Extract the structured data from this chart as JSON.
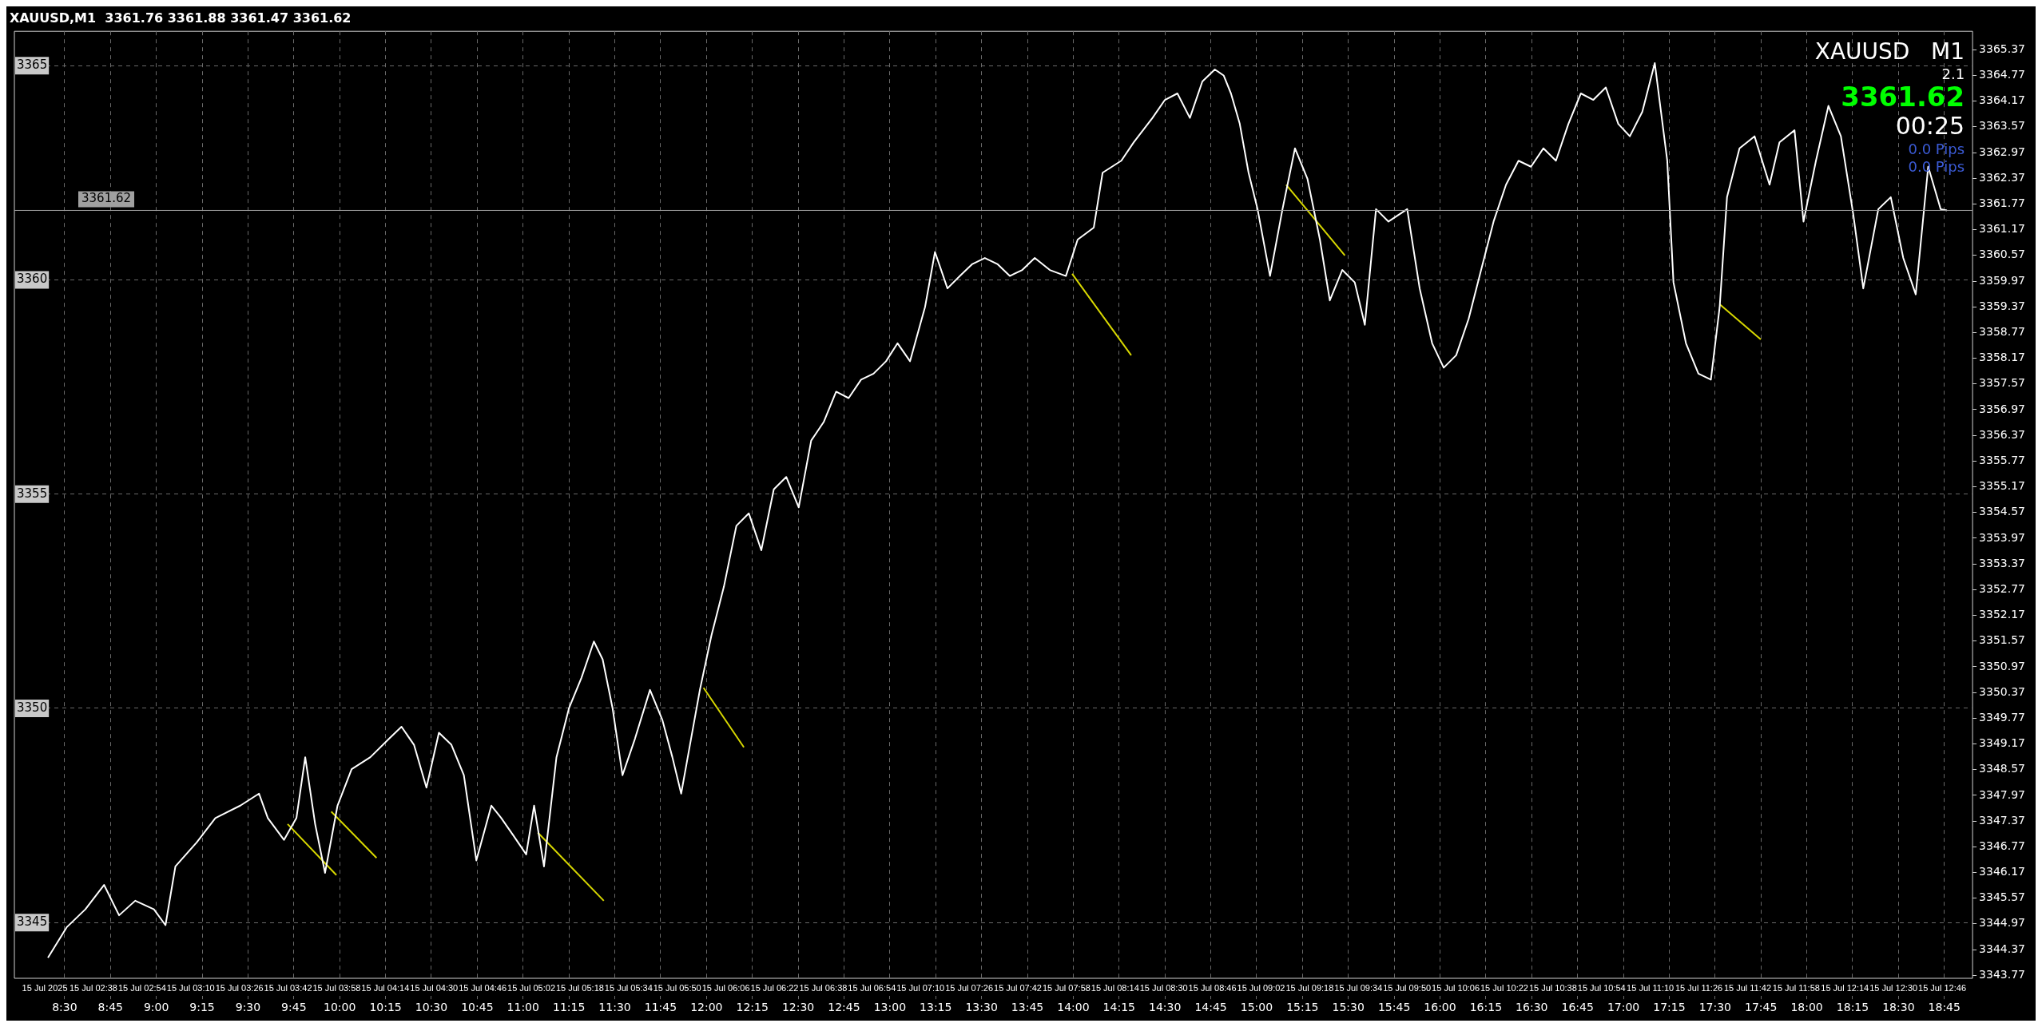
{
  "chart_data": {
    "type": "line",
    "title": "XAUUSD,M1  3361.76 3361.88 3361.47 3361.62",
    "annotations": [
      "XAUUSD   M1",
      "2.1",
      "3361.62",
      "00:25",
      "0.0 Pips",
      "0.0 Pips"
    ],
    "marker": "none",
    "legend": false,
    "grid": true,
    "xlim": [
      8.226,
      18.904
    ],
    "xticks": [
      {
        "value": 8.5,
        "label": "8:30"
      },
      {
        "value": 8.75,
        "label": "8:45"
      },
      {
        "value": 9,
        "label": "9:00"
      },
      {
        "value": 9.25,
        "label": "9:15"
      },
      {
        "value": 9.5,
        "label": "9:30"
      },
      {
        "value": 9.75,
        "label": "9:45"
      },
      {
        "value": 10,
        "label": "10:00"
      },
      {
        "value": 10.25,
        "label": "10:15"
      },
      {
        "value": 10.5,
        "label": "10:30"
      },
      {
        "value": 10.75,
        "label": "10:45"
      },
      {
        "value": 11,
        "label": "11:00"
      },
      {
        "value": 11.25,
        "label": "11:15"
      },
      {
        "value": 11.5,
        "label": "11:30"
      },
      {
        "value": 11.75,
        "label": "11:45"
      },
      {
        "value": 12,
        "label": "12:00"
      },
      {
        "value": 12.25,
        "label": "12:15"
      },
      {
        "value": 12.5,
        "label": "12:30"
      },
      {
        "value": 12.75,
        "label": "12:45"
      },
      {
        "value": 13,
        "label": "13:00"
      },
      {
        "value": 13.25,
        "label": "13:15"
      },
      {
        "value": 13.5,
        "label": "13:30"
      },
      {
        "value": 13.75,
        "label": "13:45"
      },
      {
        "value": 14,
        "label": "14:00"
      },
      {
        "value": 14.25,
        "label": "14:15"
      },
      {
        "value": 14.5,
        "label": "14:30"
      },
      {
        "value": 14.75,
        "label": "14:45"
      },
      {
        "value": 15,
        "label": "15:00"
      },
      {
        "value": 15.25,
        "label": "15:15"
      },
      {
        "value": 15.5,
        "label": "15:30"
      },
      {
        "value": 15.75,
        "label": "15:45"
      },
      {
        "value": 16,
        "label": "16:00"
      },
      {
        "value": 16.25,
        "label": "16:15"
      },
      {
        "value": 16.5,
        "label": "16:30"
      },
      {
        "value": 16.75,
        "label": "16:45"
      },
      {
        "value": 17,
        "label": "17:00"
      },
      {
        "value": 17.25,
        "label": "17:15"
      },
      {
        "value": 17.5,
        "label": "17:30"
      },
      {
        "value": 17.75,
        "label": "17:45"
      },
      {
        "value": 18,
        "label": "18:00"
      },
      {
        "value": 18.25,
        "label": "18:15"
      },
      {
        "value": 18.5,
        "label": "18:30"
      },
      {
        "value": 18.75,
        "label": "18:45"
      }
    ],
    "x2lim": [
      "2025-07-15T02:12",
      "2025-07-15T12:56"
    ],
    "x2ticks": [
      {
        "value": "2025-07-15T02:22",
        "label": "15 Jul 2025"
      },
      {
        "value": "2025-07-15T02:38",
        "label": "15 Jul 02:38"
      },
      {
        "value": "2025-07-15T02:54",
        "label": "15 Jul 02:54"
      },
      {
        "value": "2025-07-15T03:10",
        "label": "15 Jul 03:10"
      },
      {
        "value": "2025-07-15T03:26",
        "label": "15 Jul 03:26"
      },
      {
        "value": "2025-07-15T03:42",
        "label": "15 Jul 03:42"
      },
      {
        "value": "2025-07-15T03:58",
        "label": "15 Jul 03:58"
      },
      {
        "value": "2025-07-15T04:14",
        "label": "15 Jul 04:14"
      },
      {
        "value": "2025-07-15T04:30",
        "label": "15 Jul 04:30"
      },
      {
        "value": "2025-07-15T04:46",
        "label": "15 Jul 04:46"
      },
      {
        "value": "2025-07-15T05:02",
        "label": "15 Jul 05:02"
      },
      {
        "value": "2025-07-15T05:18",
        "label": "15 Jul 05:18"
      },
      {
        "value": "2025-07-15T05:34",
        "label": "15 Jul 05:34"
      },
      {
        "value": "2025-07-15T05:50",
        "label": "15 Jul 05:50"
      },
      {
        "value": "2025-07-15T06:06",
        "label": "15 Jul 06:06"
      },
      {
        "value": "2025-07-15T06:22",
        "label": "15 Jul 06:22"
      },
      {
        "value": "2025-07-15T06:38",
        "label": "15 Jul 06:38"
      },
      {
        "value": "2025-07-15T06:54",
        "label": "15 Jul 06:54"
      },
      {
        "value": "2025-07-15T07:10",
        "label": "15 Jul 07:10"
      },
      {
        "value": "2025-07-15T07:26",
        "label": "15 Jul 07:26"
      },
      {
        "value": "2025-07-15T07:42",
        "label": "15 Jul 07:42"
      },
      {
        "value": "2025-07-15T07:58",
        "label": "15 Jul 07:58"
      },
      {
        "value": "2025-07-15T08:14",
        "label": "15 Jul 08:14"
      },
      {
        "value": "2025-07-15T08:30",
        "label": "15 Jul 08:30"
      },
      {
        "value": "2025-07-15T08:46",
        "label": "15 Jul 08:46"
      },
      {
        "value": "2025-07-15T09:02",
        "label": "15 Jul 09:02"
      },
      {
        "value": "2025-07-15T09:18",
        "label": "15 Jul 09:18"
      },
      {
        "value": "2025-07-15T09:34",
        "label": "15 Jul 09:34"
      },
      {
        "value": "2025-07-15T09:50",
        "label": "15 Jul 09:50"
      },
      {
        "value": "2025-07-15T10:06",
        "label": "15 Jul 10:06"
      },
      {
        "value": "2025-07-15T10:22",
        "label": "15 Jul 10:22"
      },
      {
        "value": "2025-07-15T10:38",
        "label": "15 Jul 10:38"
      },
      {
        "value": "2025-07-15T10:54",
        "label": "15 Jul 10:54"
      },
      {
        "value": "2025-07-15T11:10",
        "label": "15 Jul 11:10"
      },
      {
        "value": "2025-07-15T11:26",
        "label": "15 Jul 11:26"
      },
      {
        "value": "2025-07-15T11:42",
        "label": "15 Jul 11:42"
      },
      {
        "value": "2025-07-15T11:58",
        "label": "15 Jul 11:58"
      },
      {
        "value": "2025-07-15T12:14",
        "label": "15 Jul 12:14"
      },
      {
        "value": "2025-07-15T12:30",
        "label": "15 Jul 12:30"
      },
      {
        "value": "2025-07-15T12:46",
        "label": "15 Jul 12:46"
      }
    ],
    "ylim": [
      3343.7,
      3365.8
    ],
    "yticks": [
      3345,
      3350,
      3355,
      3360,
      3365
    ],
    "y2lim": [
      3343.7,
      3365.8
    ],
    "y2ticks": [
      3343.77,
      3344.37,
      3344.97,
      3345.57,
      3346.17,
      3346.77,
      3347.37,
      3347.97,
      3348.57,
      3349.17,
      3349.77,
      3350.37,
      3350.97,
      3351.57,
      3352.17,
      3352.77,
      3353.37,
      3353.97,
      3354.57,
      3355.17,
      3355.77,
      3356.37,
      3356.97,
      3357.57,
      3358.17,
      3358.77,
      3359.37,
      3359.97,
      3360.57,
      3361.17,
      3361.77,
      3362.37,
      3362.97,
      3363.57,
      3364.17,
      3364.77,
      3365.37
    ],
    "ref_lines": [
      {
        "axis": "y",
        "value": 3361.62,
        "label": "3361.62",
        "color": "#a0a0a0"
      }
    ],
    "series": [
      {
        "color": "#ffffff",
        "x": [
          8.409,
          8.511,
          8.613,
          8.715,
          8.797,
          8.885,
          8.987,
          9.05,
          9.104,
          9.22,
          9.322,
          9.458,
          9.56,
          9.608,
          9.696,
          9.764,
          9.812,
          9.866,
          9.92,
          9.988,
          10.065,
          10.167,
          10.269,
          10.337,
          10.405,
          10.473,
          10.541,
          10.609,
          10.677,
          10.745,
          10.827,
          10.881,
          10.949,
          11.017,
          11.06,
          11.114,
          11.182,
          11.25,
          11.318,
          11.386,
          11.434,
          11.488,
          11.542,
          11.61,
          11.692,
          11.76,
          11.814,
          11.862,
          11.91,
          11.964,
          12.027,
          12.095,
          12.163,
          12.231,
          12.299,
          12.367,
          12.435,
          12.503,
          12.571,
          12.639,
          12.707,
          12.775,
          12.843,
          12.911,
          12.979,
          13.042,
          13.11,
          13.192,
          13.246,
          13.314,
          13.382,
          13.45,
          13.518,
          13.586,
          13.654,
          13.722,
          13.79,
          13.872,
          13.96,
          14.024,
          14.112,
          14.16,
          14.262,
          14.33,
          14.432,
          14.5,
          14.568,
          14.636,
          14.704,
          14.772,
          14.82,
          14.86,
          14.908,
          14.956,
          15.005,
          15.073,
          15.141,
          15.209,
          15.277,
          15.345,
          15.399,
          15.467,
          15.535,
          15.59,
          15.651,
          15.719,
          15.821,
          15.889,
          15.957,
          16.02,
          16.088,
          16.156,
          16.224,
          16.292,
          16.36,
          16.428,
          16.496,
          16.564,
          16.632,
          16.7,
          16.768,
          16.836,
          16.904,
          16.972,
          17.035,
          17.103,
          17.171,
          17.205,
          17.239,
          17.273,
          17.341,
          17.409,
          17.477,
          17.525,
          17.565,
          17.633,
          17.715,
          17.797,
          17.851,
          17.933,
          17.982,
          18.05,
          18.118,
          18.186,
          18.254,
          18.308,
          18.39,
          18.458,
          18.526,
          18.594,
          18.662,
          18.73,
          18.764
        ],
        "values": [
          3344.18,
          3344.89,
          3345.31,
          3345.88,
          3345.17,
          3345.51,
          3345.31,
          3344.94,
          3346.31,
          3346.87,
          3347.44,
          3347.73,
          3348.01,
          3347.44,
          3346.93,
          3347.44,
          3348.86,
          3347.3,
          3346.16,
          3347.73,
          3348.58,
          3348.86,
          3349.29,
          3349.57,
          3349.15,
          3348.15,
          3349.43,
          3349.15,
          3348.44,
          3346.45,
          3347.73,
          3347.44,
          3347.02,
          3346.59,
          3347.73,
          3346.31,
          3348.86,
          3350.0,
          3350.71,
          3351.56,
          3351.14,
          3350.0,
          3348.44,
          3349.29,
          3350.43,
          3349.72,
          3348.86,
          3348.01,
          3349.15,
          3350.43,
          3351.7,
          3352.84,
          3354.26,
          3354.55,
          3353.69,
          3355.11,
          3355.4,
          3354.69,
          3356.25,
          3356.68,
          3357.39,
          3357.24,
          3357.67,
          3357.81,
          3358.1,
          3358.52,
          3358.1,
          3359.37,
          3360.65,
          3359.8,
          3360.09,
          3360.37,
          3360.51,
          3360.37,
          3360.09,
          3360.23,
          3360.51,
          3360.23,
          3360.09,
          3360.94,
          3361.22,
          3362.5,
          3362.78,
          3363.21,
          3363.78,
          3364.2,
          3364.35,
          3363.78,
          3364.63,
          3364.91,
          3364.77,
          3364.35,
          3363.64,
          3362.5,
          3361.65,
          3360.09,
          3361.65,
          3363.07,
          3362.36,
          3360.94,
          3359.52,
          3360.23,
          3359.94,
          3358.95,
          3361.65,
          3361.36,
          3361.65,
          3359.8,
          3358.52,
          3357.95,
          3358.24,
          3359.09,
          3360.23,
          3361.36,
          3362.22,
          3362.78,
          3362.64,
          3363.07,
          3362.78,
          3363.64,
          3364.35,
          3364.2,
          3364.49,
          3363.64,
          3363.35,
          3363.92,
          3365.06,
          3363.92,
          3362.78,
          3359.94,
          3358.52,
          3357.81,
          3357.67,
          3359.37,
          3361.93,
          3363.07,
          3363.35,
          3362.22,
          3363.21,
          3363.49,
          3361.36,
          3362.78,
          3364.06,
          3363.35,
          3361.51,
          3359.8,
          3361.65,
          3361.93,
          3360.51,
          3359.66,
          3362.64,
          3361.65,
          3361.62
        ]
      },
      {
        "color": "#d8d800",
        "x": [
          9.716,
          9.982
        ],
        "values": [
          3347.3,
          3346.11
        ]
      },
      {
        "color": "#d8d800",
        "x": [
          9.954,
          10.201
        ],
        "values": [
          3347.59,
          3346.51
        ]
      },
      {
        "color": "#d8d800",
        "x": [
          11.08,
          11.44
        ],
        "values": [
          3347.1,
          3345.51
        ]
      },
      {
        "color": "#d8d800",
        "x": [
          11.984,
          12.204
        ],
        "values": [
          3350.48,
          3349.09
        ]
      },
      {
        "color": "#d8d800",
        "x": [
          13.994,
          14.316
        ],
        "values": [
          3360.14,
          3358.24
        ]
      },
      {
        "color": "#d8d800",
        "x": [
          15.161,
          15.481
        ],
        "values": [
          3362.22,
          3360.57
        ]
      },
      {
        "color": "#d8d800",
        "x": [
          17.525,
          17.749
        ],
        "values": [
          3359.43,
          3358.61
        ]
      }
    ]
  }
}
